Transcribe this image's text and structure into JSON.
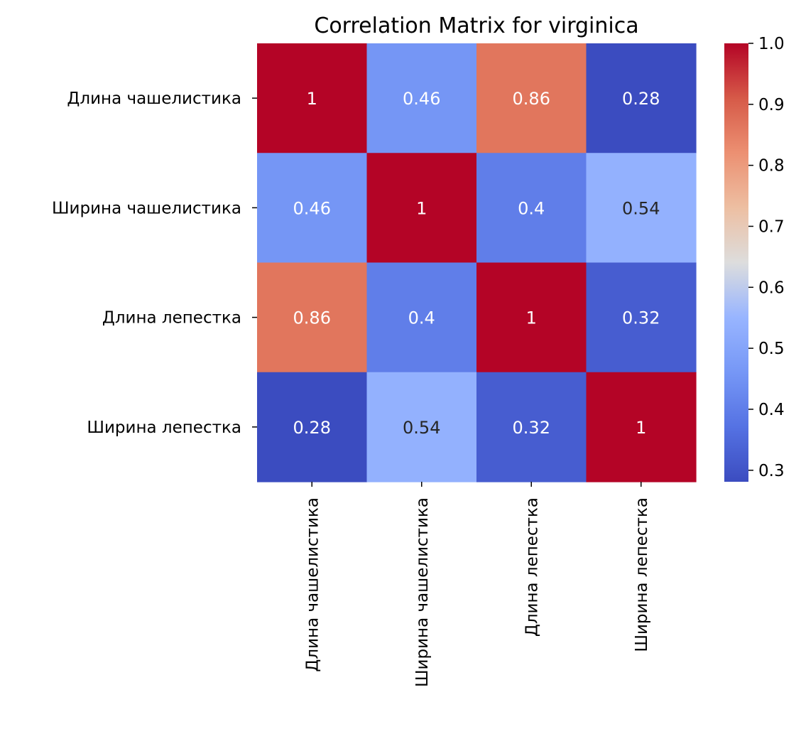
{
  "chart_data": {
    "type": "heatmap",
    "title": "Correlation Matrix for virginica",
    "row_labels": [
      "Длина чашелистика",
      "Ширина чашелистика",
      "Длина лепестка",
      "Ширина лепестка"
    ],
    "col_labels": [
      "Длина чашелистика",
      "Ширина чашелистика",
      "Длина лепестка",
      "Ширина лепестка"
    ],
    "values": [
      [
        1.0,
        0.457228,
        0.864225,
        0.281108
      ],
      [
        0.457228,
        1.0,
        0.401045,
        0.537728
      ],
      [
        0.864225,
        0.401045,
        1.0,
        0.322108
      ],
      [
        0.281108,
        0.537728,
        0.322108,
        1.0
      ]
    ],
    "annotations": [
      [
        "1",
        "0.46",
        "0.86",
        "0.28"
      ],
      [
        "0.46",
        "1",
        "0.4",
        "0.54"
      ],
      [
        "0.86",
        "0.4",
        "1",
        "0.32"
      ],
      [
        "0.28",
        "0.54",
        "0.32",
        "1"
      ]
    ],
    "colormap": "coolwarm",
    "colorbar": {
      "vmin": 0.281108,
      "vmax": 1.0,
      "ticks": [
        0.3,
        0.4,
        0.5,
        0.6,
        0.7,
        0.8,
        0.9,
        1.0
      ],
      "tick_labels": [
        "0.3",
        "0.4",
        "0.5",
        "0.6",
        "0.7",
        "0.8",
        "0.9",
        "1.0"
      ]
    },
    "xlabel": "",
    "ylabel": ""
  }
}
